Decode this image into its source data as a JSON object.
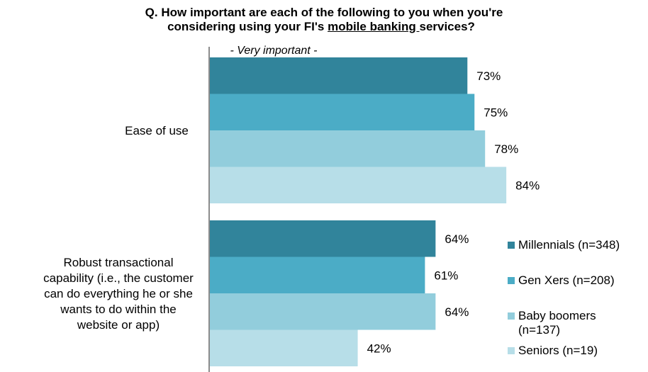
{
  "title": {
    "line1": "Q. How important are each of the following to you when you're",
    "line2_prefix": "considering using your FI's ",
    "line2_underlined": "mobile banking ",
    "line2_suffix": "services?"
  },
  "chart_data": {
    "type": "bar",
    "orientation": "horizontal",
    "subtitle": "- Very important -",
    "categories": [
      "Ease of use",
      "Robust transactional capability (i.e., the customer can do everything he or she wants to do within the website or app)"
    ],
    "category_lines": [
      [
        "Ease of use"
      ],
      [
        "Robust transactional",
        "capability (i.e., the customer",
        "can do everything he or she",
        "wants to do within the",
        "website or app)"
      ]
    ],
    "series": [
      {
        "name": "Millennials (n=348)",
        "values": [
          73,
          64
        ],
        "labels": [
          "73%",
          "64%"
        ],
        "color": "#31849b"
      },
      {
        "name": "Gen Xers (n=208)",
        "values": [
          75,
          61
        ],
        "labels": [
          "75%",
          "61%"
        ],
        "color": "#4bacc6"
      },
      {
        "name": "Baby boomers (n=137)",
        "values": [
          78,
          64
        ],
        "labels": [
          "78%",
          "64%"
        ],
        "color": "#92cddc"
      },
      {
        "name": "Seniors (n=19)",
        "values": [
          84,
          42
        ],
        "labels": [
          "84%",
          "42%"
        ],
        "color": "#b7dee8"
      }
    ],
    "xlim": [
      0,
      100
    ],
    "legend_position": "right",
    "grid": false
  },
  "legend_lines": [
    [
      "Millennials (n=348)"
    ],
    [
      "Gen Xers (n=208)"
    ],
    [
      "Baby boomers",
      "(n=137)"
    ],
    [
      "Seniors (n=19)"
    ]
  ]
}
